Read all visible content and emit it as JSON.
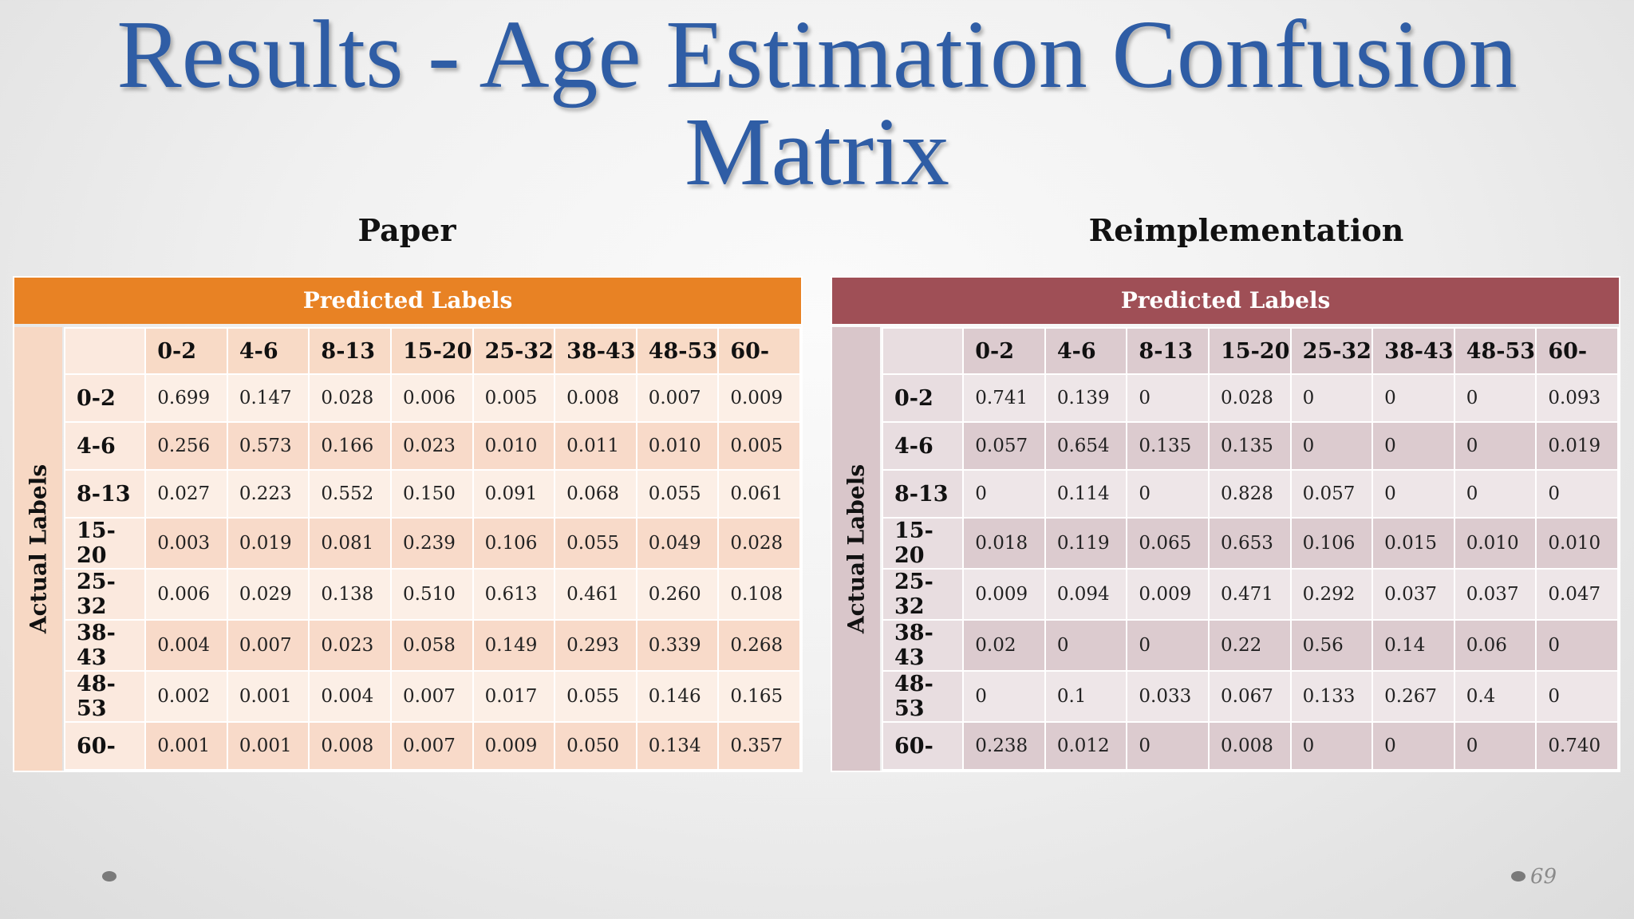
{
  "slide": {
    "title_line1": "Results - Age Estimation Confusion",
    "title_line2": "Matrix",
    "page_number": "69"
  },
  "paper": {
    "subtitle": "Paper",
    "predicted_header": "Predicted Labels",
    "actual_label": "Actual Labels",
    "columns": [
      "0-2",
      "4-6",
      "8-13",
      "15-20",
      "25-32",
      "38-43",
      "48-53",
      "60-"
    ],
    "rows": [
      {
        "label": "0-2",
        "values": [
          "0.699",
          "0.147",
          "0.028",
          "0.006",
          "0.005",
          "0.008",
          "0.007",
          "0.009"
        ]
      },
      {
        "label": "4-6",
        "values": [
          "0.256",
          "0.573",
          "0.166",
          "0.023",
          "0.010",
          "0.011",
          "0.010",
          "0.005"
        ]
      },
      {
        "label": "8-13",
        "values": [
          "0.027",
          "0.223",
          "0.552",
          "0.150",
          "0.091",
          "0.068",
          "0.055",
          "0.061"
        ]
      },
      {
        "label": "15-20",
        "values": [
          "0.003",
          "0.019",
          "0.081",
          "0.239",
          "0.106",
          "0.055",
          "0.049",
          "0.028"
        ]
      },
      {
        "label": "25-32",
        "values": [
          "0.006",
          "0.029",
          "0.138",
          "0.510",
          "0.613",
          "0.461",
          "0.260",
          "0.108"
        ]
      },
      {
        "label": "38-43",
        "values": [
          "0.004",
          "0.007",
          "0.023",
          "0.058",
          "0.149",
          "0.293",
          "0.339",
          "0.268"
        ]
      },
      {
        "label": "48-53",
        "values": [
          "0.002",
          "0.001",
          "0.004",
          "0.007",
          "0.017",
          "0.055",
          "0.146",
          "0.165"
        ]
      },
      {
        "label": "60-",
        "values": [
          "0.001",
          "0.001",
          "0.008",
          "0.007",
          "0.009",
          "0.050",
          "0.134",
          "0.357"
        ]
      }
    ]
  },
  "reimplementation": {
    "subtitle": "Reimplementation",
    "predicted_header": "Predicted Labels",
    "actual_label": "Actual Labels",
    "columns": [
      "0-2",
      "4-6",
      "8-13",
      "15-20",
      "25-32",
      "38-43",
      "48-53",
      "60-"
    ],
    "rows": [
      {
        "label": "0-2",
        "values": [
          "0.741",
          "0.139",
          "0",
          "0.028",
          "0",
          "0",
          "0",
          "0.093"
        ]
      },
      {
        "label": "4-6",
        "values": [
          "0.057",
          "0.654",
          "0.135",
          "0.135",
          "0",
          "0",
          "0",
          "0.019"
        ]
      },
      {
        "label": "8-13",
        "values": [
          "0",
          "0.114",
          "0",
          "0.828",
          "0.057",
          "0",
          "0",
          "0"
        ]
      },
      {
        "label": "15-20",
        "values": [
          "0.018",
          "0.119",
          "0.065",
          "0.653",
          "0.106",
          "0.015",
          "0.010",
          "0.010"
        ]
      },
      {
        "label": "25-32",
        "values": [
          "0.009",
          "0.094",
          "0.009",
          "0.471",
          "0.292",
          "0.037",
          "0.037",
          "0.047"
        ]
      },
      {
        "label": "38-43",
        "values": [
          "0.02",
          "0",
          "0",
          "0.22",
          "0.56",
          "0.14",
          "0.06",
          "0"
        ]
      },
      {
        "label": "48-53",
        "values": [
          "0",
          "0.1",
          "0.033",
          "0.067",
          "0.133",
          "0.267",
          "0.4",
          "0"
        ]
      },
      {
        "label": "60-",
        "values": [
          "0.238",
          "0.012",
          "0",
          "0.008",
          "0",
          "0",
          "0",
          "0.740"
        ]
      }
    ]
  }
}
